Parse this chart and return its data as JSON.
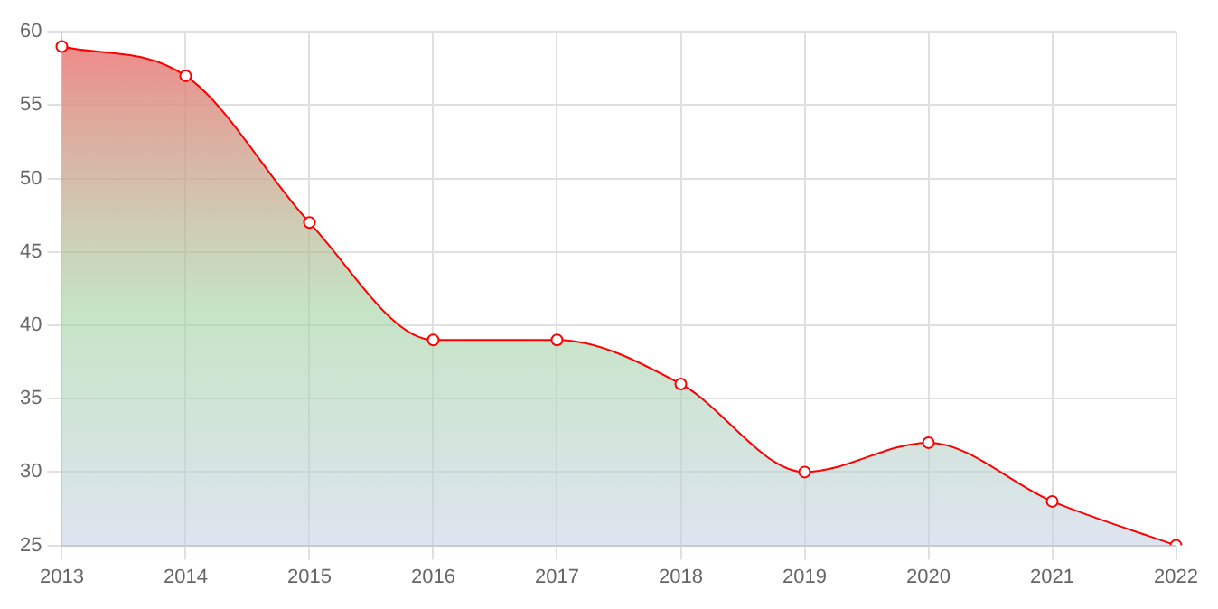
{
  "chart_data": {
    "type": "area",
    "categories": [
      "2013",
      "2014",
      "2015",
      "2016",
      "2017",
      "2018",
      "2019",
      "2020",
      "2021",
      "2022"
    ],
    "series": [
      {
        "color": "#ff0000",
        "values": [
          59,
          57,
          47,
          39,
          39,
          36,
          30,
          32,
          28,
          25
        ]
      }
    ],
    "ylim": [
      25,
      60
    ],
    "yticks": [
      25,
      30,
      35,
      40,
      45,
      50,
      55,
      60
    ],
    "grid": true,
    "legend": false,
    "marker": "circle"
  }
}
